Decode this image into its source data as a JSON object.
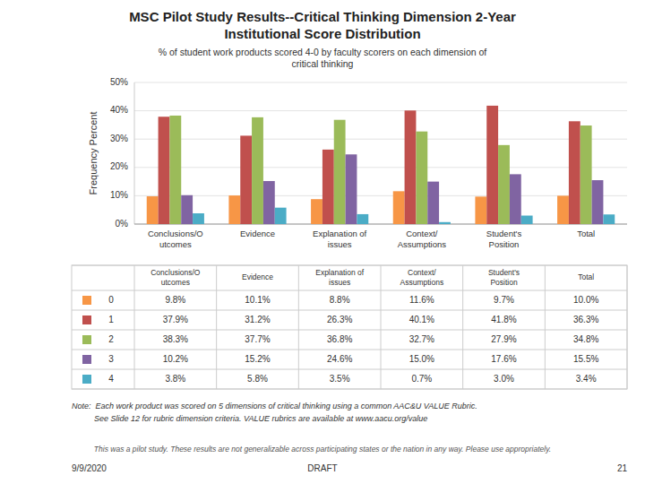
{
  "chart_data": {
    "type": "bar",
    "title": "MSC Pilot Study Results--Critical Thinking Dimension 2-Year\nInstitutional Score Distribution",
    "subtitle": "% of student work products scored 4-0 by faculty scorers on each dimension of\ncritical thinking",
    "y_label": "Frequency Percent",
    "categories": [
      "Conclusions/O\nutcomes",
      "Evidence",
      "Explanation of\nissues",
      "Context/\nAssumptions",
      "Student's\nPosition",
      "Total"
    ],
    "series": [
      {
        "name": "0",
        "color": "#F79646",
        "values": [
          9.8,
          10.1,
          8.8,
          11.6,
          9.7,
          10.0
        ],
        "value_labels": [
          "9.8%",
          "10.1%",
          "8.8%",
          "11.6%",
          "9.7%",
          "10.0%"
        ]
      },
      {
        "name": "1",
        "color": "#C0504D",
        "values": [
          37.9,
          31.2,
          26.3,
          40.1,
          41.8,
          36.3
        ],
        "value_labels": [
          "37.9%",
          "31.2%",
          "26.3%",
          "40.1%",
          "41.8%",
          "36.3%"
        ]
      },
      {
        "name": "2",
        "color": "#9BBB59",
        "values": [
          38.3,
          37.7,
          36.8,
          32.7,
          27.9,
          34.8
        ],
        "value_labels": [
          "38.3%",
          "37.7%",
          "36.8%",
          "32.7%",
          "27.9%",
          "34.8%"
        ]
      },
      {
        "name": "3",
        "color": "#8064A2",
        "values": [
          10.2,
          15.2,
          24.6,
          15.0,
          17.6,
          15.5
        ],
        "value_labels": [
          "10.2%",
          "15.2%",
          "24.6%",
          "15.0%",
          "17.6%",
          "15.5%"
        ]
      },
      {
        "name": "4",
        "color": "#4BACC6",
        "values": [
          3.8,
          5.8,
          3.5,
          0.7,
          3.0,
          3.4
        ],
        "value_labels": [
          "3.8%",
          "5.8%",
          "3.5%",
          "0.7%",
          "3.0%",
          "3.4%"
        ]
      }
    ],
    "ylim": [
      0,
      50
    ],
    "yticks": [
      {
        "value": 0,
        "label": "0%"
      },
      {
        "value": 10,
        "label": "10%"
      },
      {
        "value": 20,
        "label": "20%"
      },
      {
        "value": 30,
        "label": "30%"
      },
      {
        "value": 40,
        "label": "40%"
      },
      {
        "value": 50,
        "label": "50%"
      }
    ],
    "grid": true,
    "notes": [
      "Note:  Each work product was scored on 5 dimensions of critical thinking using a common AAC&U VALUE Rubric.",
      "          See Slide 12 for rubric dimension criteria. VALUE rubrics are available at www.aacu.org/value"
    ],
    "disclaimer": "This was a pilot study. These results are not generalizable across participating states or the nation in any way. Please use appropriately.",
    "footer": [
      "9/9/2020",
      "DRAFT",
      "21"
    ]
  }
}
